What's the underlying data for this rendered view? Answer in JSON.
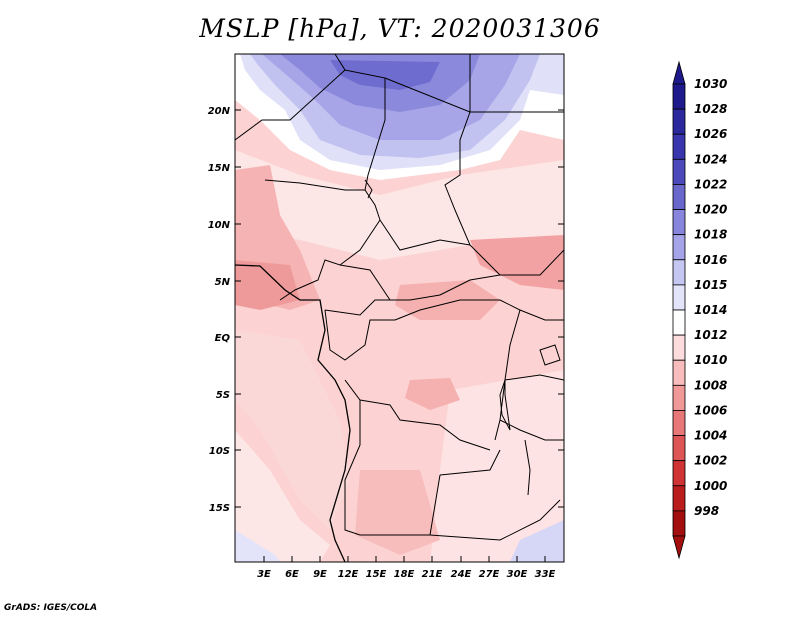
{
  "title": "MSLP [hPa], VT: 2020031306",
  "credit": "GrADS: IGES/COLA",
  "map": {
    "lat_labels": [
      "20N",
      "15N",
      "10N",
      "5N",
      "EQ",
      "5S",
      "10S",
      "15S"
    ],
    "lon_labels": [
      "3E",
      "6E",
      "9E",
      "12E",
      "15E",
      "18E",
      "21E",
      "24E",
      "27E",
      "30E",
      "33E"
    ]
  },
  "legend": {
    "levels": [
      "1030",
      "1028",
      "1026",
      "1024",
      "1022",
      "1020",
      "1018",
      "1016",
      "1015",
      "1014",
      "1012",
      "1010",
      "1008",
      "1006",
      "1004",
      "1002",
      "1000",
      "998"
    ],
    "colors": [
      "#1e1a8c",
      "#2b289e",
      "#3835ad",
      "#4c4abb",
      "#6a67cc",
      "#8886dc",
      "#a6a4e8",
      "#c6c6f2",
      "#e3e3fa",
      "#ffffff",
      "#fcdcdc",
      "#f9bcbc",
      "#f19999",
      "#e87878",
      "#de5555",
      "#cf3333",
      "#bb1d1d",
      "#a30e0e"
    ]
  }
}
